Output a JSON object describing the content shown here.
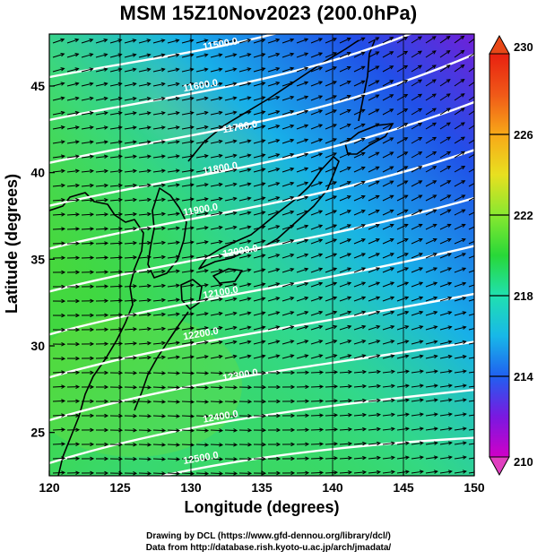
{
  "title": "MSM 15Z10Nov2023 (200.0hPa)",
  "axes": {
    "xlabel": "Longitude (degrees)",
    "ylabel": "Latitude  (degrees)",
    "xlim": [
      120,
      150
    ],
    "ylim": [
      22.5,
      48
    ],
    "xticks": [
      "120",
      "125",
      "130",
      "135",
      "140",
      "145",
      "150"
    ],
    "yticks": [
      "25",
      "30",
      "35",
      "40",
      "45"
    ]
  },
  "colorbar": {
    "min": 210,
    "max": 230,
    "tick_labels": [
      "230",
      "226",
      "222",
      "218",
      "214",
      "210"
    ],
    "colors": [
      "#d000c8",
      "#7a18e0",
      "#2060f0",
      "#18b8e8",
      "#20e0b0",
      "#28d838",
      "#88e830",
      "#e8e020",
      "#f8a818",
      "#f05818",
      "#e82010"
    ]
  },
  "contours": {
    "labels": [
      "11500.0",
      "11600.0",
      "11700.0",
      "11800.0",
      "11900.0",
      "12000.0",
      "12100.0",
      "12200.0",
      "12300.0",
      "12400.0",
      "12500.0"
    ]
  },
  "credits": {
    "line1": "Drawing by DCL (https://www.gfd-dennou.org/library/dcl/)",
    "line2": "Data from http://database.rish.kyoto-u.ac.jp/arch/jmadata/"
  }
}
